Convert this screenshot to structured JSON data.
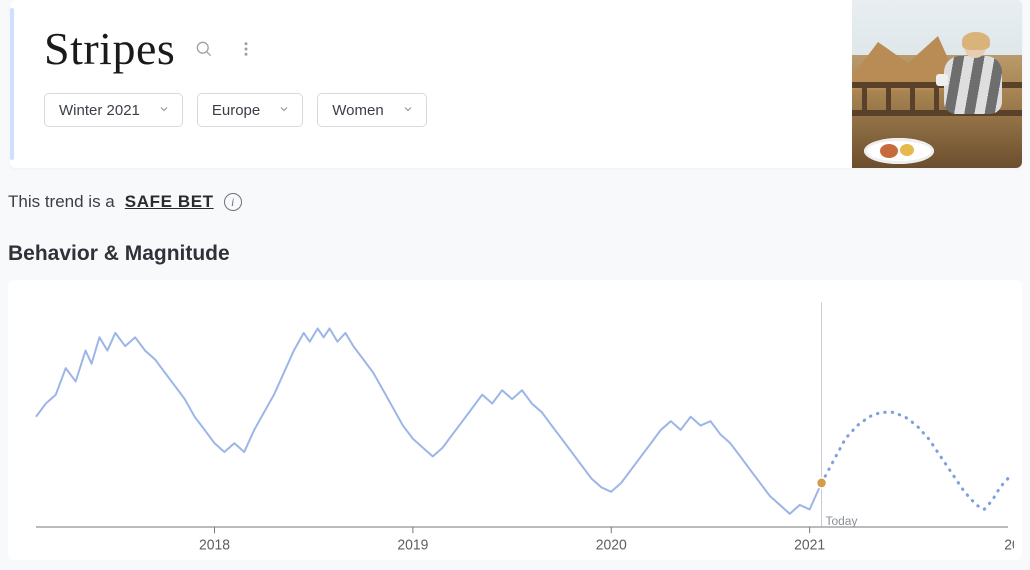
{
  "header": {
    "title": "Stripes",
    "filters": [
      {
        "label": "Winter 2021"
      },
      {
        "label": "Europe"
      },
      {
        "label": "Women"
      }
    ]
  },
  "tagline": {
    "prefix": "This trend is a",
    "badge": "SAFE BET"
  },
  "section_title": "Behavior & Magnitude",
  "chart": {
    "type": "line",
    "line_color": "#9db6e8",
    "forecast_color": "#7fa0e0",
    "axis_color": "#777777",
    "background_color": "#ffffff",
    "x_start": 2017.1,
    "x_end": 2022.0,
    "today_x": 2021.06,
    "today_label": "Today",
    "x_ticks": [
      2018,
      2019,
      2020,
      2021
    ],
    "x_tick_extra_label": "20",
    "y_range": [
      0,
      100
    ],
    "marker_color": "#d59a4a",
    "solid_series": [
      [
        2017.1,
        50
      ],
      [
        2017.15,
        56
      ],
      [
        2017.2,
        60
      ],
      [
        2017.25,
        72
      ],
      [
        2017.3,
        66
      ],
      [
        2017.35,
        80
      ],
      [
        2017.38,
        74
      ],
      [
        2017.42,
        86
      ],
      [
        2017.46,
        80
      ],
      [
        2017.5,
        88
      ],
      [
        2017.55,
        82
      ],
      [
        2017.6,
        86
      ],
      [
        2017.65,
        80
      ],
      [
        2017.7,
        76
      ],
      [
        2017.75,
        70
      ],
      [
        2017.8,
        64
      ],
      [
        2017.85,
        58
      ],
      [
        2017.9,
        50
      ],
      [
        2017.95,
        44
      ],
      [
        2018.0,
        38
      ],
      [
        2018.05,
        34
      ],
      [
        2018.1,
        38
      ],
      [
        2018.15,
        34
      ],
      [
        2018.2,
        44
      ],
      [
        2018.25,
        52
      ],
      [
        2018.3,
        60
      ],
      [
        2018.35,
        70
      ],
      [
        2018.4,
        80
      ],
      [
        2018.45,
        88
      ],
      [
        2018.48,
        84
      ],
      [
        2018.52,
        90
      ],
      [
        2018.55,
        86
      ],
      [
        2018.58,
        90
      ],
      [
        2018.62,
        84
      ],
      [
        2018.66,
        88
      ],
      [
        2018.7,
        82
      ],
      [
        2018.75,
        76
      ],
      [
        2018.8,
        70
      ],
      [
        2018.85,
        62
      ],
      [
        2018.9,
        54
      ],
      [
        2018.95,
        46
      ],
      [
        2019.0,
        40
      ],
      [
        2019.05,
        36
      ],
      [
        2019.1,
        32
      ],
      [
        2019.15,
        36
      ],
      [
        2019.2,
        42
      ],
      [
        2019.25,
        48
      ],
      [
        2019.3,
        54
      ],
      [
        2019.35,
        60
      ],
      [
        2019.4,
        56
      ],
      [
        2019.45,
        62
      ],
      [
        2019.5,
        58
      ],
      [
        2019.55,
        62
      ],
      [
        2019.6,
        56
      ],
      [
        2019.65,
        52
      ],
      [
        2019.7,
        46
      ],
      [
        2019.75,
        40
      ],
      [
        2019.8,
        34
      ],
      [
        2019.85,
        28
      ],
      [
        2019.9,
        22
      ],
      [
        2019.95,
        18
      ],
      [
        2020.0,
        16
      ],
      [
        2020.05,
        20
      ],
      [
        2020.1,
        26
      ],
      [
        2020.15,
        32
      ],
      [
        2020.2,
        38
      ],
      [
        2020.25,
        44
      ],
      [
        2020.3,
        48
      ],
      [
        2020.35,
        44
      ],
      [
        2020.4,
        50
      ],
      [
        2020.45,
        46
      ],
      [
        2020.5,
        48
      ],
      [
        2020.55,
        42
      ],
      [
        2020.6,
        38
      ],
      [
        2020.65,
        32
      ],
      [
        2020.7,
        26
      ],
      [
        2020.75,
        20
      ],
      [
        2020.8,
        14
      ],
      [
        2020.85,
        10
      ],
      [
        2020.9,
        6
      ],
      [
        2020.95,
        10
      ],
      [
        2021.0,
        8
      ],
      [
        2021.03,
        14
      ],
      [
        2021.06,
        20
      ]
    ],
    "forecast_series": [
      [
        2021.06,
        20
      ],
      [
        2021.12,
        30
      ],
      [
        2021.18,
        40
      ],
      [
        2021.24,
        46
      ],
      [
        2021.3,
        50
      ],
      [
        2021.36,
        52
      ],
      [
        2021.42,
        52
      ],
      [
        2021.48,
        50
      ],
      [
        2021.54,
        46
      ],
      [
        2021.6,
        40
      ],
      [
        2021.66,
        32
      ],
      [
        2021.72,
        24
      ],
      [
        2021.78,
        16
      ],
      [
        2021.84,
        10
      ],
      [
        2021.88,
        8
      ],
      [
        2021.92,
        12
      ],
      [
        2021.96,
        18
      ],
      [
        2022.0,
        22
      ]
    ]
  }
}
